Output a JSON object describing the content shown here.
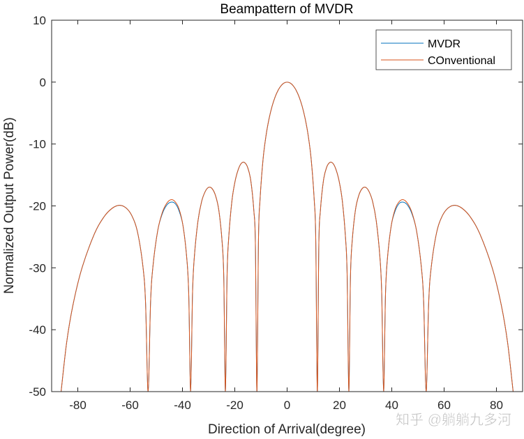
{
  "chart_data": {
    "type": "line",
    "title": "Beampattern of MVDR",
    "xlabel": "Direction of Arrival(degree)",
    "ylabel": "Normalized Output Power(dB)",
    "xlim": [
      -90,
      90
    ],
    "ylim": [
      -50,
      10
    ],
    "xticks": [
      -80,
      -60,
      -40,
      -20,
      0,
      20,
      40,
      60,
      80
    ],
    "yticks": [
      10,
      0,
      -10,
      -20,
      -30,
      -40,
      -50
    ],
    "grid": false,
    "legend_position": "top-right",
    "x": [
      -86.38,
      -84.27,
      -81.89,
      -78.52,
      -73.74,
      -70.05,
      -66.93,
      -64.16,
      -61.64,
      -59.32,
      -57.14,
      -55.08,
      -54.1,
      -53.13,
      -52.19,
      -51.26,
      -49.46,
      -47.73,
      -46.05,
      -44.43,
      -42.84,
      -41.3,
      -39.79,
      -38.32,
      -37.59,
      -36.87,
      -36.16,
      -35.45,
      -34.06,
      -32.68,
      -31.33,
      -30.0,
      -28.69,
      -27.39,
      -26.1,
      -24.83,
      -24.2,
      -23.58,
      -22.95,
      -22.33,
      -21.1,
      -19.88,
      -18.66,
      -17.46,
      -16.26,
      -15.07,
      -13.89,
      -12.71,
      -12.12,
      -11.54,
      -10.95,
      -10.37,
      -9.21,
      -8.05,
      -6.89,
      -5.74,
      -4.59,
      -3.44,
      -2.29,
      -1.15,
      0,
      1.15,
      2.29,
      3.44,
      4.59,
      5.74,
      6.89,
      8.05,
      9.21,
      10.37,
      10.95,
      11.54,
      12.12,
      12.71,
      13.89,
      15.07,
      16.26,
      17.46,
      18.66,
      19.88,
      21.1,
      22.33,
      22.95,
      23.58,
      24.2,
      24.83,
      26.1,
      27.39,
      28.69,
      30.0,
      31.33,
      32.68,
      34.06,
      35.45,
      36.16,
      36.87,
      37.59,
      38.32,
      39.79,
      41.3,
      42.84,
      44.43,
      46.05,
      47.73,
      49.46,
      51.26,
      52.19,
      53.13,
      54.1,
      55.08,
      57.14,
      59.32,
      61.64,
      64.16,
      66.93,
      70.05,
      73.74,
      78.52,
      81.89,
      84.27,
      86.38
    ],
    "series": [
      {
        "name": "MVDR",
        "color": "#0072BD",
        "y": [
          -50,
          -42.1,
          -36.1,
          -30.2,
          -24.6,
          -21.8,
          -20.4,
          -19.9,
          -20.3,
          -21.6,
          -24.3,
          -29.9,
          -35.7,
          -50,
          -35.6,
          -29.7,
          -24.0,
          -21.3,
          -19.9,
          -19.4,
          -19.6,
          -20.8,
          -23.2,
          -28.6,
          -34.4,
          -50,
          -34.2,
          -28.2,
          -22.4,
          -19.3,
          -17.7,
          -17.0,
          -17.2,
          -18.3,
          -20.7,
          -25.9,
          -31.7,
          -50,
          -31.3,
          -25.2,
          -19.2,
          -16.0,
          -14.1,
          -13.1,
          -13.0,
          -13.8,
          -15.9,
          -20.8,
          -26.3,
          -50,
          -25.5,
          -19.11,
          -12.53,
          -8.61,
          -5.89,
          -3.89,
          -2.4,
          -1.31,
          -0.57,
          -0.14,
          0,
          -0.14,
          -0.57,
          -1.31,
          -2.4,
          -3.89,
          -5.89,
          -8.61,
          -12.53,
          -19.11,
          -25.5,
          -50,
          -26.3,
          -20.8,
          -15.9,
          -13.8,
          -13.0,
          -13.1,
          -14.1,
          -16.0,
          -19.2,
          -25.2,
          -31.3,
          -50,
          -31.7,
          -25.9,
          -20.7,
          -18.3,
          -17.2,
          -17.0,
          -17.7,
          -19.3,
          -22.4,
          -28.2,
          -34.2,
          -50,
          -34.4,
          -28.6,
          -23.2,
          -20.8,
          -19.6,
          -19.4,
          -19.9,
          -21.3,
          -24.0,
          -29.7,
          -35.6,
          -50,
          -35.7,
          -29.9,
          -24.3,
          -21.6,
          -20.3,
          -19.9,
          -20.4,
          -21.8,
          -24.6,
          -30.2,
          -36.1,
          -42.1,
          -50
        ]
      },
      {
        "name": "COnventional",
        "color": "#D95319",
        "y": [
          -50,
          -42.1,
          -36.1,
          -30.2,
          -24.6,
          -21.8,
          -20.4,
          -19.9,
          -20.3,
          -21.6,
          -24.3,
          -29.9,
          -35.7,
          -50,
          -35.6,
          -29.7,
          -24.0,
          -21.1,
          -19.6,
          -19.0,
          -19.3,
          -20.5,
          -23.2,
          -28.6,
          -34.4,
          -50,
          -34.2,
          -28.2,
          -22.4,
          -19.3,
          -17.7,
          -17.0,
          -17.2,
          -18.3,
          -20.7,
          -25.9,
          -31.7,
          -50,
          -31.3,
          -25.2,
          -19.2,
          -16.0,
          -14.1,
          -13.1,
          -13.0,
          -13.8,
          -15.9,
          -20.8,
          -26.3,
          -50,
          -25.5,
          -19.11,
          -12.53,
          -8.61,
          -5.89,
          -3.89,
          -2.4,
          -1.31,
          -0.57,
          -0.14,
          0,
          -0.14,
          -0.57,
          -1.31,
          -2.4,
          -3.89,
          -5.89,
          -8.61,
          -12.53,
          -19.11,
          -25.5,
          -50,
          -26.3,
          -20.8,
          -15.9,
          -13.8,
          -13.0,
          -13.1,
          -14.1,
          -16.0,
          -19.2,
          -25.2,
          -31.3,
          -50,
          -31.7,
          -25.9,
          -20.7,
          -18.3,
          -17.2,
          -17.0,
          -17.7,
          -19.3,
          -22.4,
          -28.2,
          -34.2,
          -50,
          -34.4,
          -28.6,
          -23.2,
          -20.5,
          -19.3,
          -19.0,
          -19.6,
          -21.1,
          -24.0,
          -29.7,
          -35.6,
          -50,
          -35.7,
          -29.9,
          -24.3,
          -21.6,
          -20.3,
          -19.9,
          -20.4,
          -21.8,
          -24.6,
          -30.2,
          -36.1,
          -42.1,
          -50
        ]
      }
    ]
  },
  "watermark": "知乎 @躺躺九多河"
}
